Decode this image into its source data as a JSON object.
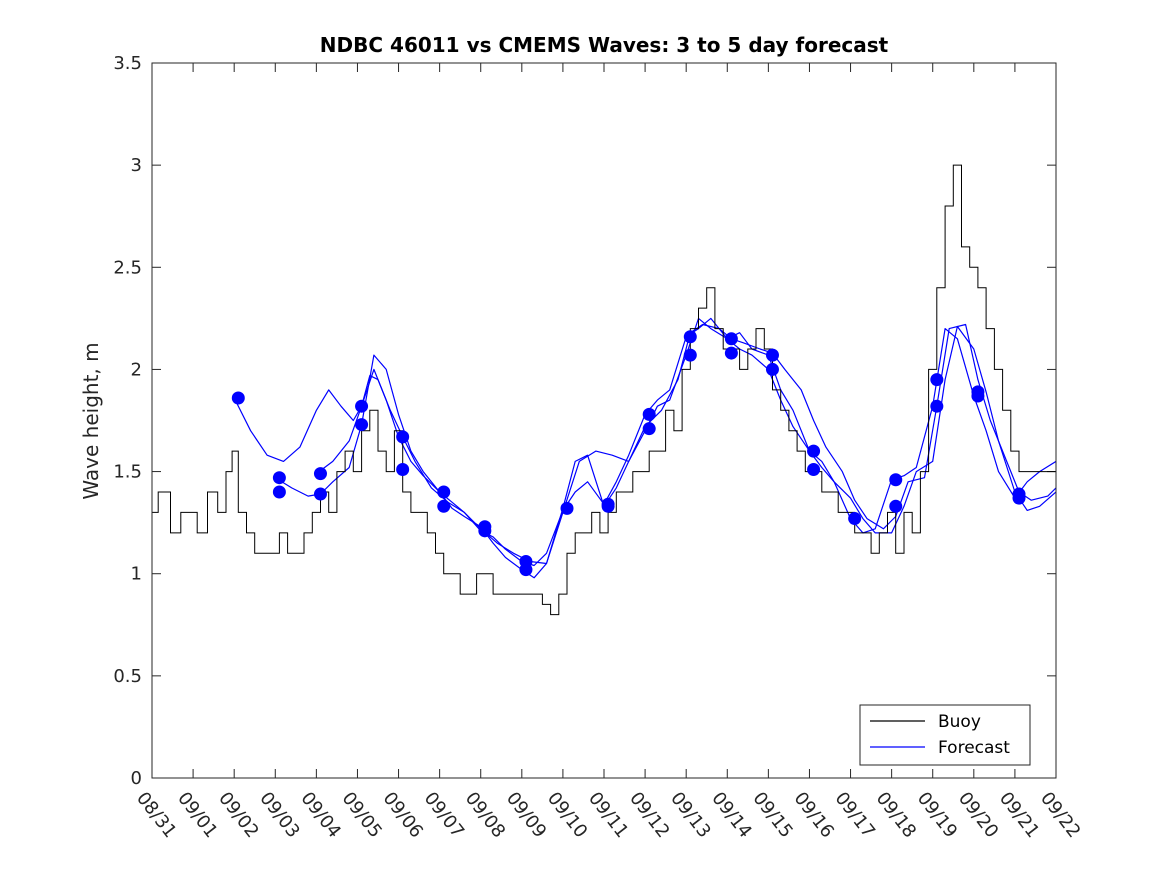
{
  "chart_data": {
    "type": "line",
    "title": "NDBC 46011 vs CMEMS Waves: 3 to 5 day forecast",
    "xlabel": "",
    "ylabel": "Wave height, m",
    "xlim": [
      0,
      22
    ],
    "ylim": [
      0,
      3.5
    ],
    "x_tick_labels": [
      "08/31",
      "09/01",
      "09/02",
      "09/03",
      "09/04",
      "09/05",
      "09/06",
      "09/07",
      "09/08",
      "09/09",
      "09/10",
      "09/11",
      "09/12",
      "09/13",
      "09/14",
      "09/15",
      "09/16",
      "09/17",
      "09/18",
      "09/19",
      "09/20",
      "09/21",
      "09/22"
    ],
    "y_ticks": [
      0,
      0.5,
      1,
      1.5,
      2,
      2.5,
      3,
      3.5
    ],
    "y_tick_labels": [
      "0",
      "0.5",
      "1",
      "1.5",
      "2",
      "2.5",
      "3",
      "3.5"
    ],
    "colors": {
      "buoy": "#000000",
      "forecast": "#0000ff",
      "axes": "#262626"
    },
    "legend": {
      "location": "bottom-right",
      "entries": [
        "Buoy",
        "Forecast"
      ]
    },
    "series": [
      {
        "name": "Buoy",
        "color": "#000000",
        "x": [
          0,
          0.3,
          0.6,
          0.8,
          1.0,
          1.2,
          1.5,
          1.7,
          1.9,
          2.0,
          2.2,
          2.4,
          2.6,
          2.8,
          3.0,
          3.2,
          3.4,
          3.6,
          3.8,
          4.0,
          4.2,
          4.4,
          4.6,
          4.8,
          5.0,
          5.2,
          5.4,
          5.6,
          5.8,
          6.0,
          6.2,
          6.4,
          6.6,
          6.8,
          7.0,
          7.2,
          7.4,
          7.6,
          7.8,
          8.0,
          8.2,
          8.4,
          8.6,
          8.8,
          9.0,
          9.2,
          9.4,
          9.6,
          9.8,
          10.0,
          10.2,
          10.4,
          10.6,
          10.8,
          11.0,
          11.2,
          11.4,
          11.6,
          11.8,
          12.0,
          12.2,
          12.4,
          12.6,
          12.8,
          13.0,
          13.2,
          13.4,
          13.6,
          13.8,
          14.0,
          14.2,
          14.4,
          14.6,
          14.8,
          15.0,
          15.2,
          15.4,
          15.6,
          15.8,
          16.0,
          16.2,
          16.4,
          16.6,
          16.8,
          17.0,
          17.2,
          17.4,
          17.6,
          17.8,
          18.0,
          18.2,
          18.4,
          18.6,
          18.8,
          19.0,
          19.2,
          19.4,
          19.6,
          19.8,
          20.0,
          20.2,
          20.4,
          20.6,
          20.8,
          21.0,
          21.2,
          21.4,
          21.6,
          21.8,
          22.0
        ],
        "y": [
          1.3,
          1.4,
          1.2,
          1.3,
          1.3,
          1.2,
          1.4,
          1.3,
          1.5,
          1.6,
          1.3,
          1.2,
          1.1,
          1.1,
          1.1,
          1.2,
          1.1,
          1.1,
          1.2,
          1.3,
          1.4,
          1.3,
          1.5,
          1.6,
          1.5,
          1.7,
          1.8,
          1.6,
          1.5,
          1.7,
          1.4,
          1.3,
          1.3,
          1.2,
          1.1,
          1.0,
          1.0,
          0.9,
          0.9,
          1.0,
          1.0,
          0.9,
          0.9,
          0.9,
          0.9,
          0.9,
          0.9,
          0.85,
          0.8,
          0.9,
          1.1,
          1.2,
          1.2,
          1.3,
          1.2,
          1.3,
          1.4,
          1.4,
          1.5,
          1.5,
          1.6,
          1.6,
          1.8,
          1.7,
          2.0,
          2.2,
          2.3,
          2.4,
          2.2,
          2.1,
          2.1,
          2.0,
          2.1,
          2.2,
          2.1,
          1.9,
          1.8,
          1.7,
          1.6,
          1.5,
          1.5,
          1.4,
          1.4,
          1.3,
          1.3,
          1.2,
          1.2,
          1.1,
          1.2,
          1.3,
          1.1,
          1.3,
          1.2,
          1.5,
          2.0,
          2.4,
          2.8,
          3.0,
          2.6,
          2.5,
          2.4,
          2.2,
          2.0,
          1.8,
          1.6,
          1.5,
          1.5,
          1.5,
          1.5,
          1.5
        ]
      },
      {
        "name": "Forecast",
        "color": "#0000ff",
        "segments": [
          {
            "x": [
              2.0,
              2.4,
              2.8,
              3.2,
              3.6,
              4.0,
              4.3,
              4.6,
              4.9,
              5.1,
              5.3,
              5.5,
              5.8,
              6.1,
              6.4,
              6.8,
              7.2,
              7.6,
              8.0,
              8.4,
              8.8,
              9.2,
              9.6,
              10.0,
              10.4,
              10.8,
              11.2,
              11.6,
              12.0,
              12.4,
              12.8,
              13.1,
              13.4,
              13.8,
              14.1,
              14.4,
              14.8,
              15.1,
              15.4,
              15.8,
              16.1,
              16.4,
              16.8,
              17.1,
              17.4,
              17.8,
              18.1,
              18.4,
              18.8,
              19.1,
              19.4,
              19.8,
              20.1,
              20.4,
              20.8,
              21.1,
              21.4,
              21.8,
              22.0
            ],
            "y": [
              1.86,
              1.7,
              1.58,
              1.55,
              1.62,
              1.8,
              1.9,
              1.82,
              1.75,
              1.82,
              1.97,
              1.95,
              1.8,
              1.67,
              1.55,
              1.42,
              1.35,
              1.3,
              1.22,
              1.15,
              1.1,
              1.06,
              1.05,
              1.3,
              1.55,
              1.6,
              1.58,
              1.55,
              1.72,
              1.8,
              1.95,
              2.18,
              2.22,
              2.2,
              2.15,
              2.13,
              2.1,
              2.08,
              2.0,
              1.9,
              1.75,
              1.62,
              1.5,
              1.36,
              1.27,
              1.22,
              1.28,
              1.45,
              1.47,
              1.82,
              2.2,
              2.22,
              1.95,
              1.75,
              1.55,
              1.4,
              1.36,
              1.38,
              1.42
            ]
          },
          {
            "x": [
              3.0,
              3.4,
              3.8,
              4.1,
              4.4,
              4.8,
              5.1,
              5.4,
              5.7,
              6.0,
              6.3,
              6.6,
              7.0,
              7.3,
              7.6,
              8.0,
              8.3,
              8.6,
              9.0,
              9.3,
              9.6,
              10.0,
              10.3,
              10.6,
              11.0,
              11.3,
              11.6,
              12.0,
              12.3,
              12.6,
              13.0,
              13.3,
              13.6,
              14.0,
              14.3,
              14.6,
              15.0,
              15.3,
              15.6,
              16.0,
              16.3,
              16.6,
              17.0,
              17.3,
              17.6,
              18.0,
              18.3,
              18.6,
              19.0,
              19.3,
              19.6,
              20.0,
              20.3,
              20.6,
              21.0,
              21.3,
              21.6,
              22.0
            ],
            "y": [
              1.47,
              1.42,
              1.38,
              1.39,
              1.45,
              1.52,
              1.73,
              2.07,
              2.0,
              1.78,
              1.6,
              1.5,
              1.4,
              1.32,
              1.28,
              1.23,
              1.15,
              1.08,
              1.02,
              0.98,
              1.05,
              1.32,
              1.55,
              1.58,
              1.33,
              1.42,
              1.55,
              1.7,
              1.82,
              1.85,
              2.07,
              2.25,
              2.2,
              2.15,
              2.1,
              2.07,
              2.0,
              1.85,
              1.72,
              1.6,
              1.52,
              1.45,
              1.37,
              1.27,
              1.2,
              1.2,
              1.33,
              1.5,
              1.55,
              1.95,
              2.21,
              2.1,
              1.89,
              1.65,
              1.4,
              1.31,
              1.33,
              1.4
            ]
          },
          {
            "x": [
              4.0,
              4.4,
              4.8,
              5.1,
              5.4,
              5.7,
              6.0,
              6.3,
              6.6,
              7.0,
              7.3,
              7.6,
              8.0,
              8.3,
              8.6,
              9.0,
              9.3,
              9.6,
              10.0,
              10.3,
              10.6,
              11.0,
              11.3,
              11.6,
              12.0,
              12.3,
              12.6,
              13.0,
              13.3,
              13.6,
              14.0,
              14.3,
              14.6,
              15.0,
              15.3,
              15.6,
              16.0,
              16.3,
              16.6,
              17.0,
              17.3,
              17.6,
              18.0,
              18.3,
              18.6,
              19.0,
              19.3,
              19.6,
              20.0,
              20.3,
              20.6,
              21.0,
              21.3,
              21.6,
              22.0
            ],
            "y": [
              1.49,
              1.55,
              1.65,
              1.82,
              2.0,
              1.85,
              1.67,
              1.55,
              1.48,
              1.4,
              1.35,
              1.3,
              1.21,
              1.18,
              1.12,
              1.06,
              1.04,
              1.1,
              1.31,
              1.4,
              1.45,
              1.34,
              1.45,
              1.58,
              1.78,
              1.85,
              1.9,
              2.16,
              2.2,
              2.25,
              2.15,
              2.18,
              2.1,
              2.07,
              1.9,
              1.8,
              1.6,
              1.55,
              1.45,
              1.27,
              1.2,
              1.22,
              1.46,
              1.48,
              1.52,
              1.82,
              2.2,
              2.15,
              1.87,
              1.7,
              1.5,
              1.37,
              1.45,
              1.5,
              1.55
            ]
          }
        ],
        "markers": [
          {
            "x": 2.1,
            "y": 1.86
          },
          {
            "x": 3.1,
            "y": 1.47
          },
          {
            "x": 3.1,
            "y": 1.4
          },
          {
            "x": 4.1,
            "y": 1.49
          },
          {
            "x": 4.1,
            "y": 1.39
          },
          {
            "x": 5.1,
            "y": 1.82
          },
          {
            "x": 5.1,
            "y": 1.73
          },
          {
            "x": 6.1,
            "y": 1.67
          },
          {
            "x": 6.1,
            "y": 1.51
          },
          {
            "x": 7.1,
            "y": 1.4
          },
          {
            "x": 7.1,
            "y": 1.33
          },
          {
            "x": 8.1,
            "y": 1.23
          },
          {
            "x": 8.1,
            "y": 1.21
          },
          {
            "x": 9.1,
            "y": 1.06
          },
          {
            "x": 9.1,
            "y": 1.02
          },
          {
            "x": 10.1,
            "y": 1.32
          },
          {
            "x": 11.1,
            "y": 1.34
          },
          {
            "x": 11.1,
            "y": 1.33
          },
          {
            "x": 12.1,
            "y": 1.78
          },
          {
            "x": 12.1,
            "y": 1.71
          },
          {
            "x": 13.1,
            "y": 2.16
          },
          {
            "x": 13.1,
            "y": 2.07
          },
          {
            "x": 14.1,
            "y": 2.15
          },
          {
            "x": 14.1,
            "y": 2.08
          },
          {
            "x": 15.1,
            "y": 2.07
          },
          {
            "x": 15.1,
            "y": 2.0
          },
          {
            "x": 16.1,
            "y": 1.6
          },
          {
            "x": 16.1,
            "y": 1.51
          },
          {
            "x": 17.1,
            "y": 1.27
          },
          {
            "x": 18.1,
            "y": 1.46
          },
          {
            "x": 18.1,
            "y": 1.33
          },
          {
            "x": 19.1,
            "y": 1.95
          },
          {
            "x": 19.1,
            "y": 1.82
          },
          {
            "x": 20.1,
            "y": 1.89
          },
          {
            "x": 20.1,
            "y": 1.87
          },
          {
            "x": 21.1,
            "y": 1.39
          },
          {
            "x": 21.1,
            "y": 1.37
          }
        ]
      }
    ]
  }
}
